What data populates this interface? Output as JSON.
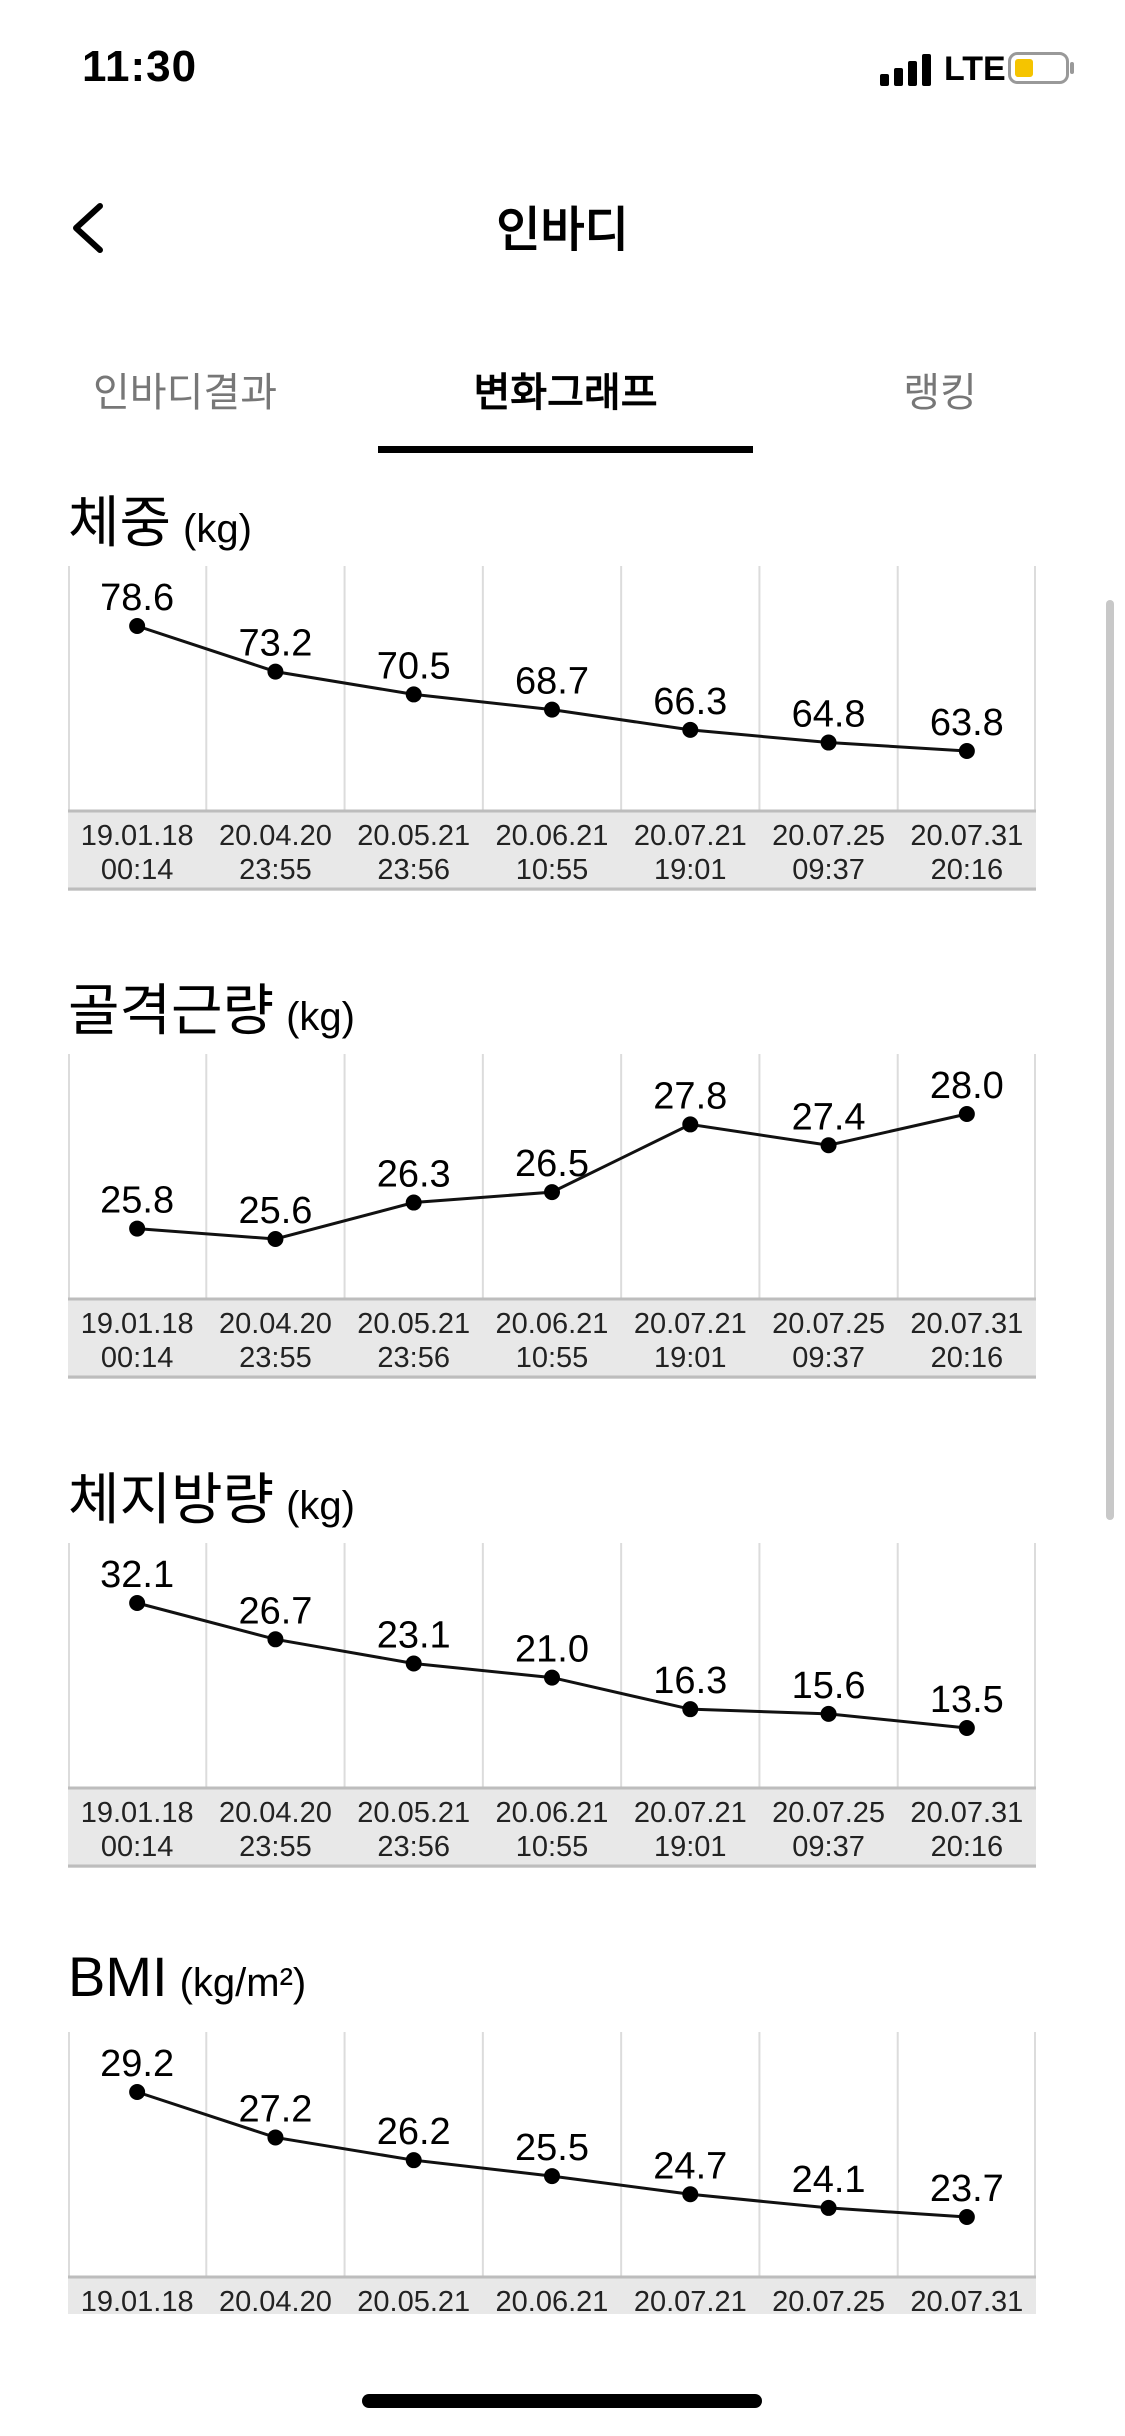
{
  "status_bar": {
    "time": "11:30",
    "network": "LTE",
    "battery_color": "#f5c400"
  },
  "nav": {
    "title": "인바디",
    "back_icon": "chevron-left-icon"
  },
  "tabs": [
    {
      "label": "인바디결과",
      "active": false
    },
    {
      "label": "변화그래프",
      "active": true
    },
    {
      "label": "랭킹",
      "active": false
    }
  ],
  "chart_data": [
    {
      "type": "line",
      "title": "체중",
      "unit": "(kg)",
      "x": [
        "19.01.18 00:14",
        "20.04.20 23:55",
        "20.05.21 23:56",
        "20.06.21 10:55",
        "20.07.21 19:01",
        "20.07.25 09:37",
        "20.07.31 20:16"
      ],
      "dates": [
        "19.01.18",
        "20.04.20",
        "20.05.21",
        "20.06.21",
        "20.07.21",
        "20.07.25",
        "20.07.31"
      ],
      "times": [
        "00:14",
        "23:55",
        "23:56",
        "10:55",
        "19:01",
        "09:37",
        "20:16"
      ],
      "values": [
        78.6,
        73.2,
        70.5,
        68.7,
        66.3,
        64.8,
        63.8
      ],
      "labels": [
        "78.6",
        "73.2",
        "70.5",
        "68.7",
        "66.3",
        "64.8",
        "63.8"
      ]
    },
    {
      "type": "line",
      "title": "골격근량",
      "unit": "(kg)",
      "x": [
        "19.01.18 00:14",
        "20.04.20 23:55",
        "20.05.21 23:56",
        "20.06.21 10:55",
        "20.07.21 19:01",
        "20.07.25 09:37",
        "20.07.31 20:16"
      ],
      "dates": [
        "19.01.18",
        "20.04.20",
        "20.05.21",
        "20.06.21",
        "20.07.21",
        "20.07.25",
        "20.07.31"
      ],
      "times": [
        "00:14",
        "23:55",
        "23:56",
        "10:55",
        "19:01",
        "09:37",
        "20:16"
      ],
      "values": [
        25.8,
        25.6,
        26.3,
        26.5,
        27.8,
        27.4,
        28.0
      ],
      "labels": [
        "25.8",
        "25.6",
        "26.3",
        "26.5",
        "27.8",
        "27.4",
        "28.0"
      ]
    },
    {
      "type": "line",
      "title": "체지방량",
      "unit": "(kg)",
      "x": [
        "19.01.18 00:14",
        "20.04.20 23:55",
        "20.05.21 23:56",
        "20.06.21 10:55",
        "20.07.21 19:01",
        "20.07.25 09:37",
        "20.07.31 20:16"
      ],
      "dates": [
        "19.01.18",
        "20.04.20",
        "20.05.21",
        "20.06.21",
        "20.07.21",
        "20.07.25",
        "20.07.31"
      ],
      "times": [
        "00:14",
        "23:55",
        "23:56",
        "10:55",
        "19:01",
        "09:37",
        "20:16"
      ],
      "values": [
        32.1,
        26.7,
        23.1,
        21.0,
        16.3,
        15.6,
        13.5
      ],
      "labels": [
        "32.1",
        "26.7",
        "23.1",
        "21.0",
        "16.3",
        "15.6",
        "13.5"
      ]
    },
    {
      "type": "line",
      "title": "BMI",
      "unit": "(kg/m²)",
      "x": [
        "19.01.18",
        "20.04.20",
        "20.05.21",
        "20.06.21",
        "20.07.21",
        "20.07.25",
        "20.07.31"
      ],
      "dates": [
        "19.01.18",
        "20.04.20",
        "20.05.21",
        "20.06.21",
        "20.07.21",
        "20.07.25",
        "20.07.31"
      ],
      "times": [],
      "values": [
        29.2,
        27.2,
        26.2,
        25.5,
        24.7,
        24.1,
        23.7
      ],
      "labels": [
        "29.2",
        "27.2",
        "26.2",
        "25.5",
        "24.7",
        "24.1",
        "23.7"
      ]
    }
  ]
}
